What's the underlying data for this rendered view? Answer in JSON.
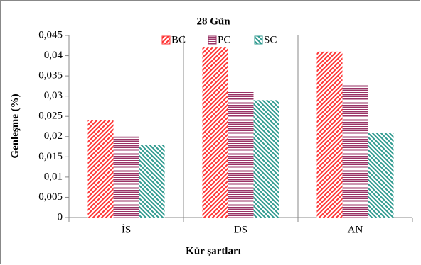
{
  "chart_data": {
    "type": "bar",
    "title": "28 Gün",
    "x_label": "Kür şartları",
    "y_label": "Genleşme (%)",
    "categories": [
      "İS",
      "DS",
      "AN"
    ],
    "series": [
      {
        "name": "BC",
        "color": "#ff3333",
        "values": [
          0.024,
          0.042,
          0.041
        ]
      },
      {
        "name": "PC",
        "color": "#993366",
        "values": [
          0.02,
          0.031,
          0.033
        ]
      },
      {
        "name": "SC",
        "color": "#2f9a8f",
        "values": [
          0.018,
          0.029,
          0.021
        ]
      }
    ],
    "ylim": [
      0,
      0.045
    ],
    "yticks": [
      0,
      {
        "value": 0.005,
        "label": "0,005"
      },
      {
        "value": 0.01,
        "label": "0,01"
      },
      {
        "value": 0.015,
        "label": "0,015"
      },
      {
        "value": 0.02,
        "label": "0,02"
      },
      {
        "value": 0.025,
        "label": "0,025"
      },
      {
        "value": 0.03,
        "label": "0,03"
      },
      {
        "value": 0.035,
        "label": "0,035"
      },
      {
        "value": 0.04,
        "label": "0,04"
      },
      {
        "value": 0.045,
        "label": "0,045"
      }
    ]
  }
}
